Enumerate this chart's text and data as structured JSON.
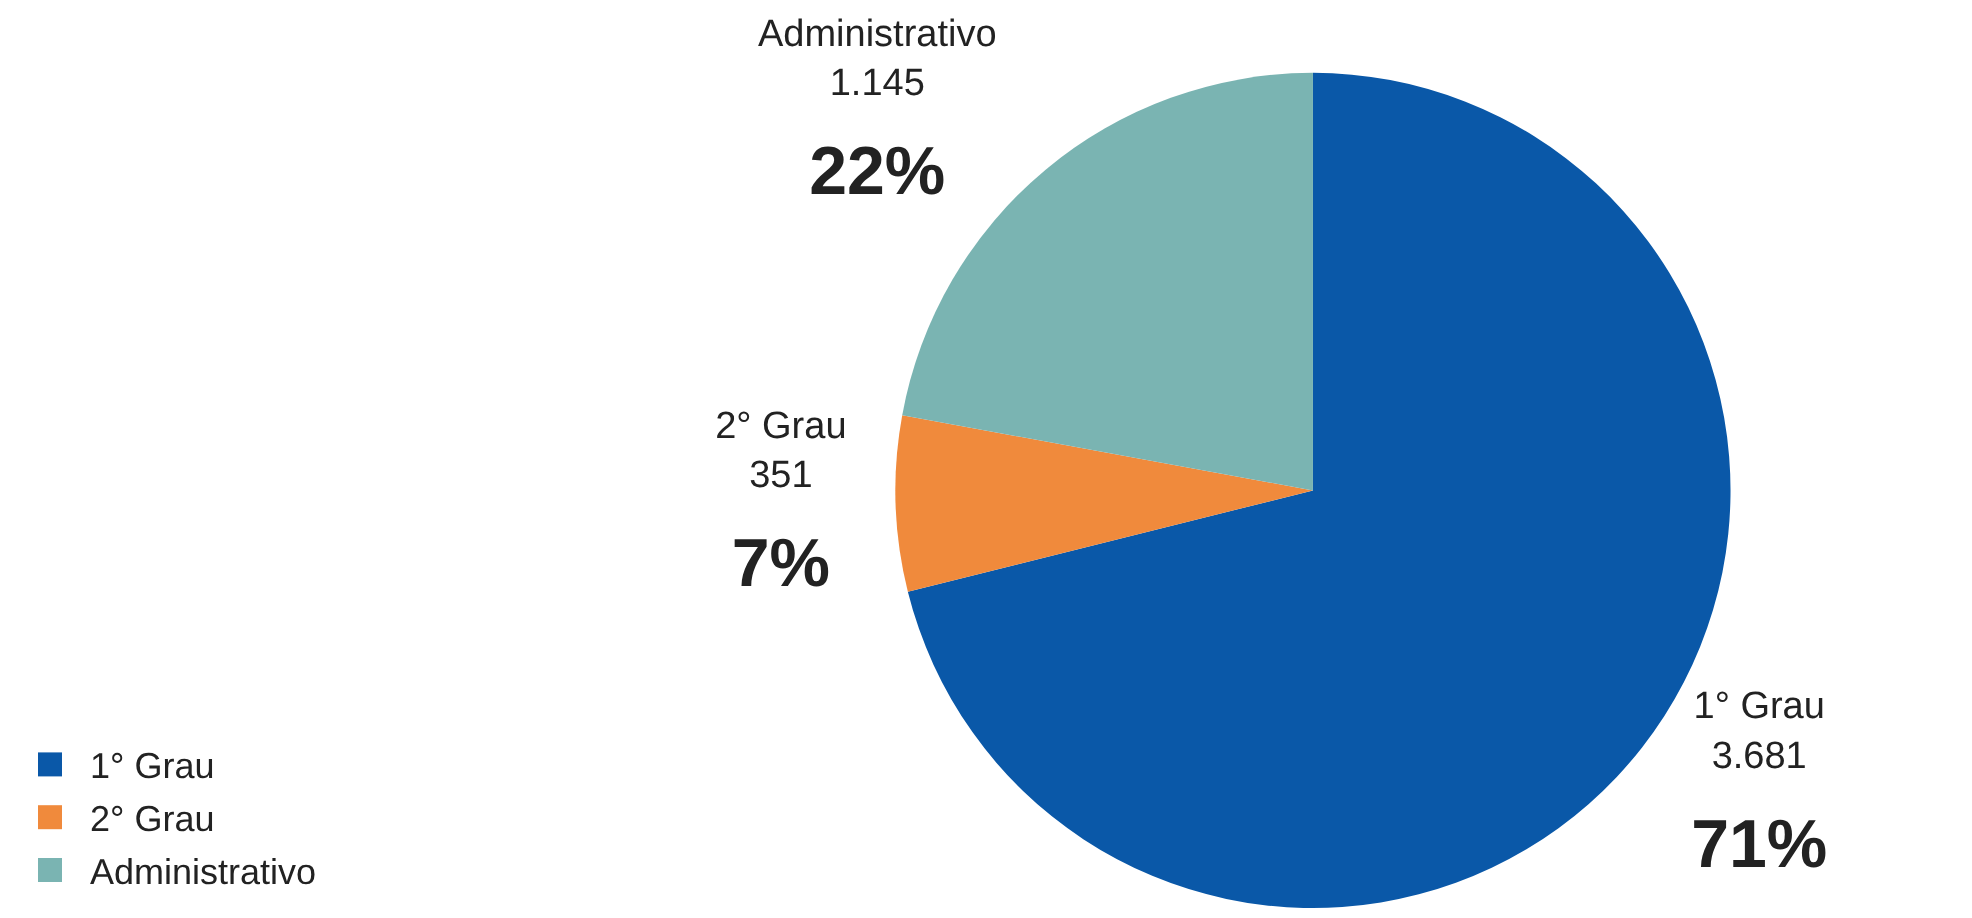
{
  "chart_data": {
    "type": "pie",
    "categories": [
      "1° Grau",
      "2° Grau",
      "Administrativo"
    ],
    "values": [
      3681,
      351,
      1145
    ],
    "colors": [
      "#0a58a8",
      "#f08a3c",
      "#7ab4b2"
    ],
    "value_labels": [
      "3.681\n71%",
      "351\n7%",
      "1.145\n22%"
    ],
    "legend": "bottom left"
  }
}
